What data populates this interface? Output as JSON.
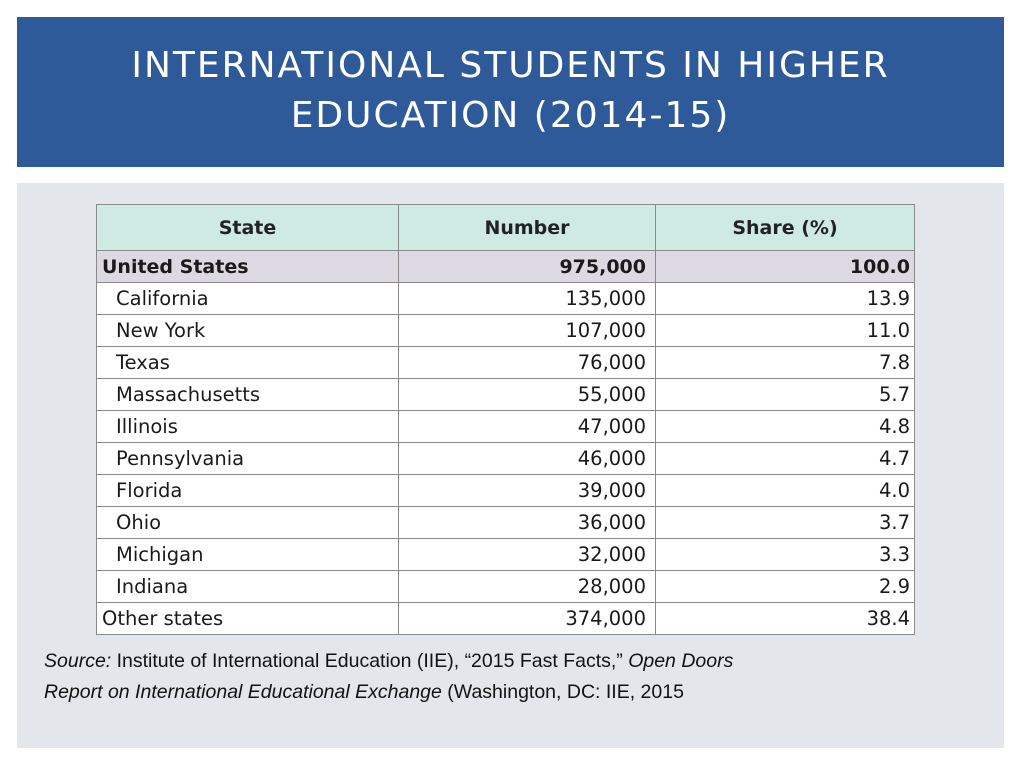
{
  "title": {
    "line1": "INTERNATIONAL STUDENTS IN HIGHER",
    "line2": "EDUCATION (2014-15)"
  },
  "table": {
    "headers": [
      "State",
      "Number",
      "Share (%)"
    ],
    "total": {
      "state": "United States",
      "number": "975,000",
      "share": "100.0"
    },
    "rows": [
      {
        "state": "California",
        "number": "135,000",
        "share": "13.9"
      },
      {
        "state": "New York",
        "number": "107,000",
        "share": "11.0"
      },
      {
        "state": "Texas",
        "number": "76,000",
        "share": "7.8"
      },
      {
        "state": "Massachusetts",
        "number": "55,000",
        "share": "5.7"
      },
      {
        "state": "Illinois",
        "number": "47,000",
        "share": "4.8"
      },
      {
        "state": "Pennsylvania",
        "number": "46,000",
        "share": "4.7"
      },
      {
        "state": "Florida",
        "number": "39,000",
        "share": "4.0"
      },
      {
        "state": "Ohio",
        "number": "36,000",
        "share": "3.7"
      },
      {
        "state": "Michigan",
        "number": "32,000",
        "share": "3.3"
      },
      {
        "state": "Indiana",
        "number": "28,000",
        "share": "2.9"
      }
    ],
    "other": {
      "state": "Other states",
      "number": "374,000",
      "share": "38.4"
    }
  },
  "source": {
    "label": "Source:",
    "text1": " Institute of International Education (IIE), “2015 Fast Facts,” ",
    "italic1": "Open Doors",
    "italic2": "Report on International Educational Exchange",
    "text2": " (Washington, DC: IIE, 2015"
  },
  "colors": {
    "title_bar": "#2e5a99",
    "content_panel": "#e3e7ec",
    "header_row": "#cfe9e3",
    "total_row": "#dcd9e3"
  }
}
